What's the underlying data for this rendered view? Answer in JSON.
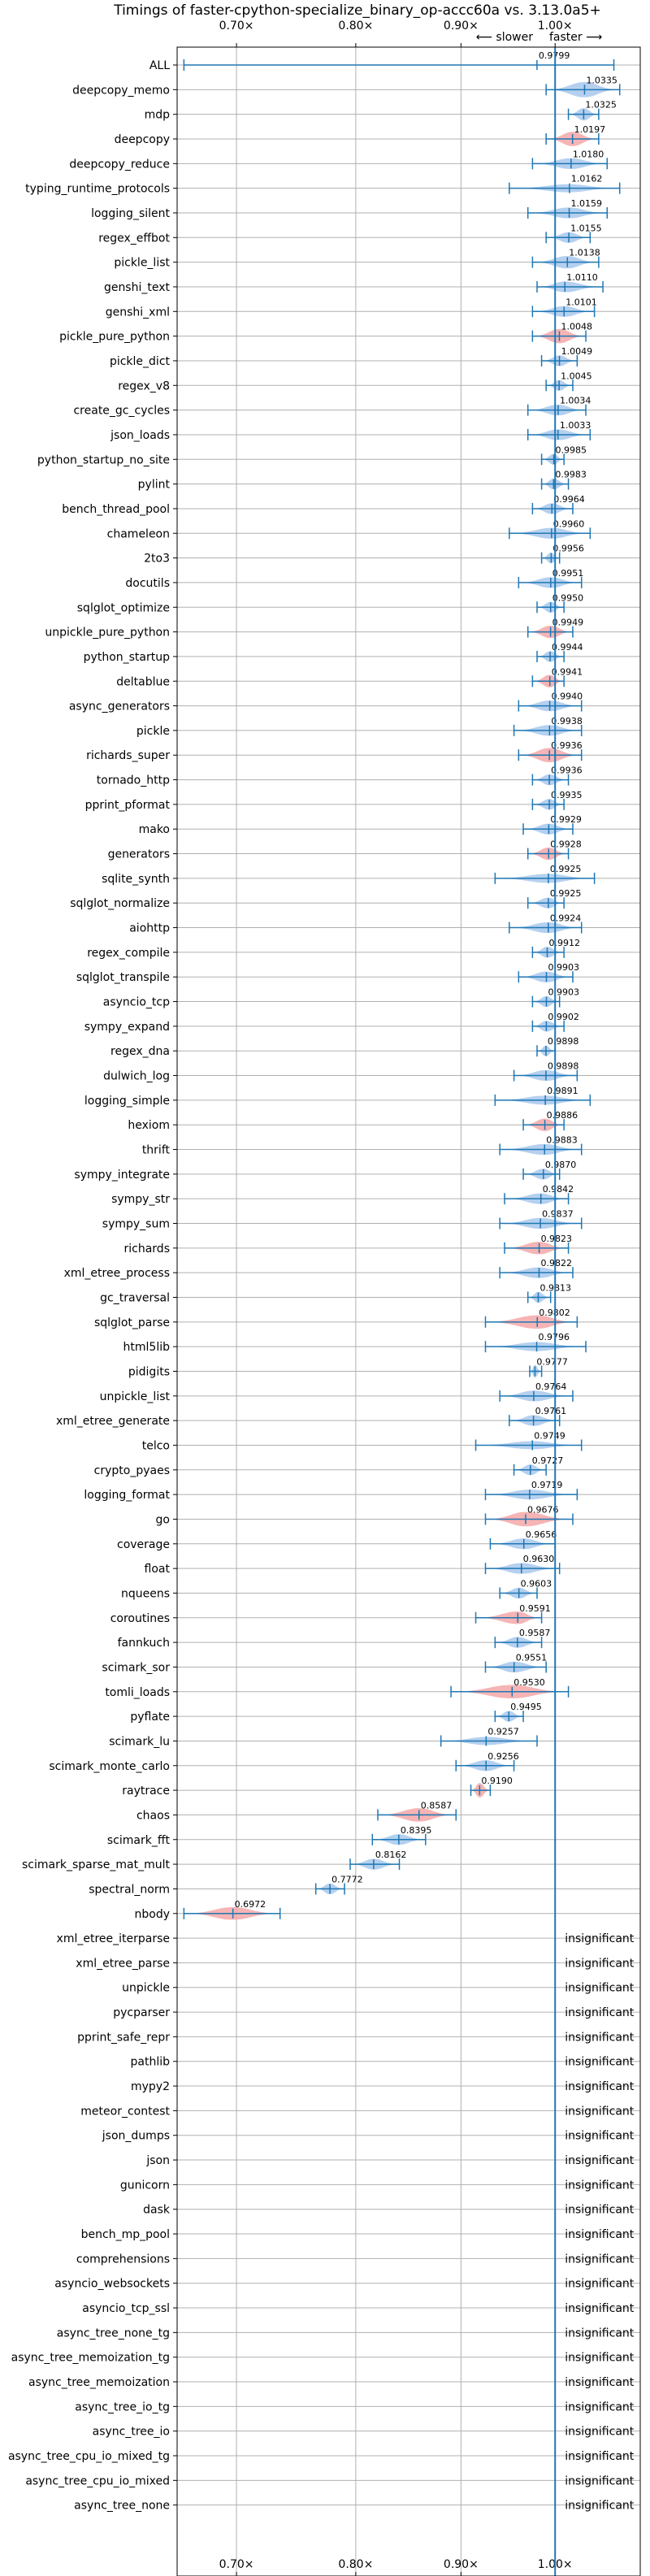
{
  "chart_data": {
    "type": "violin",
    "title": "Timings of faster-cpython-specialize_binary_op-accc60a vs. 3.13.0a5+",
    "xlabel": "",
    "ylabel": "",
    "x_scale": "log",
    "xlim": [
      0.655,
      1.1
    ],
    "x_ticks": [
      {
        "value": 0.7,
        "label": "0.70×"
      },
      {
        "value": 0.8,
        "label": "0.80×"
      },
      {
        "value": 0.9,
        "label": "0.90×"
      },
      {
        "value": 1.0,
        "label": "1.00×"
      }
    ],
    "reference_line": 1.0,
    "direction_labels": {
      "slower": "⟵ slower",
      "faster": "faster ⟶"
    },
    "grid": true,
    "colors": {
      "faster": "#a8c8ec",
      "slower": "#f4a7a7",
      "line": "#1f77b4"
    },
    "benchmarks": [
      {
        "name": "ALL",
        "value": 0.9799,
        "label": "0.9799",
        "lo": 0.66,
        "hi": 1.068,
        "color": "faster",
        "width": 0.01
      },
      {
        "name": "deepcopy_memo",
        "value": 1.0335,
        "label": "1.0335",
        "lo": 0.99,
        "hi": 1.075,
        "color": "faster",
        "width": 0.85
      },
      {
        "name": "mdp",
        "value": 1.0325,
        "label": "1.0325",
        "lo": 1.015,
        "hi": 1.05,
        "color": "faster",
        "width": 0.7
      },
      {
        "name": "deepcopy",
        "value": 1.0197,
        "label": "1.0197",
        "lo": 0.99,
        "hi": 1.05,
        "color": "slower",
        "width": 0.8
      },
      {
        "name": "deepcopy_reduce",
        "value": 1.018,
        "label": "1.0180",
        "lo": 0.975,
        "hi": 1.06,
        "color": "faster",
        "width": 0.6
      },
      {
        "name": "typing_runtime_protocols",
        "value": 1.0162,
        "label": "1.0162",
        "lo": 0.95,
        "hi": 1.075,
        "color": "faster",
        "width": 0.45
      },
      {
        "name": "logging_silent",
        "value": 1.0159,
        "label": "1.0159",
        "lo": 0.97,
        "hi": 1.06,
        "color": "faster",
        "width": 0.6
      },
      {
        "name": "regex_effbot",
        "value": 1.0155,
        "label": "1.0155",
        "lo": 0.99,
        "hi": 1.04,
        "color": "faster",
        "width": 0.6
      },
      {
        "name": "pickle_list",
        "value": 1.0138,
        "label": "1.0138",
        "lo": 0.975,
        "hi": 1.05,
        "color": "faster",
        "width": 0.7
      },
      {
        "name": "genshi_text",
        "value": 1.011,
        "label": "1.0110",
        "lo": 0.98,
        "hi": 1.055,
        "color": "faster",
        "width": 0.6
      },
      {
        "name": "genshi_xml",
        "value": 1.0101,
        "label": "1.0101",
        "lo": 0.975,
        "hi": 1.045,
        "color": "faster",
        "width": 0.6
      },
      {
        "name": "pickle_pure_python",
        "value": 1.0048,
        "label": "1.0048",
        "lo": 0.975,
        "hi": 1.035,
        "color": "slower",
        "width": 0.8
      },
      {
        "name": "pickle_dict",
        "value": 1.0049,
        "label": "1.0049",
        "lo": 0.985,
        "hi": 1.025,
        "color": "faster",
        "width": 0.6
      },
      {
        "name": "regex_v8",
        "value": 1.0045,
        "label": "1.0045",
        "lo": 0.99,
        "hi": 1.02,
        "color": "faster",
        "width": 0.6
      },
      {
        "name": "create_gc_cycles",
        "value": 1.0034,
        "label": "1.0034",
        "lo": 0.97,
        "hi": 1.035,
        "color": "faster",
        "width": 0.6
      },
      {
        "name": "json_loads",
        "value": 1.0033,
        "label": "1.0033",
        "lo": 0.97,
        "hi": 1.04,
        "color": "faster",
        "width": 0.6
      },
      {
        "name": "python_startup_no_site",
        "value": 0.9985,
        "label": "0.9985",
        "lo": 0.985,
        "hi": 1.01,
        "color": "faster",
        "width": 0.6
      },
      {
        "name": "pylint",
        "value": 0.9983,
        "label": "0.9983",
        "lo": 0.985,
        "hi": 1.015,
        "color": "faster",
        "width": 0.6
      },
      {
        "name": "bench_thread_pool",
        "value": 0.9964,
        "label": "0.9964",
        "lo": 0.975,
        "hi": 1.02,
        "color": "faster",
        "width": 0.6
      },
      {
        "name": "chameleon",
        "value": 0.996,
        "label": "0.9960",
        "lo": 0.95,
        "hi": 1.04,
        "color": "faster",
        "width": 0.6
      },
      {
        "name": "2to3",
        "value": 0.9956,
        "label": "0.9956",
        "lo": 0.985,
        "hi": 1.005,
        "color": "faster",
        "width": 0.6
      },
      {
        "name": "docutils",
        "value": 0.9951,
        "label": "0.9951",
        "lo": 0.96,
        "hi": 1.03,
        "color": "faster",
        "width": 0.6
      },
      {
        "name": "sqlglot_optimize",
        "value": 0.995,
        "label": "0.9950",
        "lo": 0.98,
        "hi": 1.01,
        "color": "faster",
        "width": 0.6
      },
      {
        "name": "unpickle_pure_python",
        "value": 0.9949,
        "label": "0.9949",
        "lo": 0.97,
        "hi": 1.02,
        "color": "slower",
        "width": 0.7
      },
      {
        "name": "python_startup",
        "value": 0.9944,
        "label": "0.9944",
        "lo": 0.98,
        "hi": 1.01,
        "color": "faster",
        "width": 0.6
      },
      {
        "name": "deltablue",
        "value": 0.9941,
        "label": "0.9941",
        "lo": 0.975,
        "hi": 1.01,
        "color": "slower",
        "width": 0.7
      },
      {
        "name": "async_generators",
        "value": 0.994,
        "label": "0.9940",
        "lo": 0.96,
        "hi": 1.03,
        "color": "faster",
        "width": 0.6
      },
      {
        "name": "pickle",
        "value": 0.9938,
        "label": "0.9938",
        "lo": 0.955,
        "hi": 1.03,
        "color": "faster",
        "width": 0.6
      },
      {
        "name": "richards_super",
        "value": 0.9936,
        "label": "0.9936",
        "lo": 0.96,
        "hi": 1.03,
        "color": "slower",
        "width": 0.8
      },
      {
        "name": "tornado_http",
        "value": 0.9936,
        "label": "0.9936",
        "lo": 0.975,
        "hi": 1.015,
        "color": "faster",
        "width": 0.6
      },
      {
        "name": "pprint_pformat",
        "value": 0.9935,
        "label": "0.9935",
        "lo": 0.975,
        "hi": 1.01,
        "color": "faster",
        "width": 0.6
      },
      {
        "name": "mako",
        "value": 0.9929,
        "label": "0.9929",
        "lo": 0.965,
        "hi": 1.02,
        "color": "faster",
        "width": 0.6
      },
      {
        "name": "generators",
        "value": 0.9928,
        "label": "0.9928",
        "lo": 0.97,
        "hi": 1.015,
        "color": "slower",
        "width": 0.7
      },
      {
        "name": "sqlite_synth",
        "value": 0.9925,
        "label": "0.9925",
        "lo": 0.935,
        "hi": 1.045,
        "color": "faster",
        "width": 0.5
      },
      {
        "name": "sqlglot_normalize",
        "value": 0.9925,
        "label": "0.9925",
        "lo": 0.97,
        "hi": 1.01,
        "color": "faster",
        "width": 0.6
      },
      {
        "name": "aiohttp",
        "value": 0.9924,
        "label": "0.9924",
        "lo": 0.95,
        "hi": 1.03,
        "color": "faster",
        "width": 0.6
      },
      {
        "name": "regex_compile",
        "value": 0.9912,
        "label": "0.9912",
        "lo": 0.975,
        "hi": 1.01,
        "color": "faster",
        "width": 0.6
      },
      {
        "name": "sqlglot_transpile",
        "value": 0.9903,
        "label": "0.9903",
        "lo": 0.96,
        "hi": 1.02,
        "color": "faster",
        "width": 0.6
      },
      {
        "name": "asyncio_tcp",
        "value": 0.9903,
        "label": "0.9903",
        "lo": 0.975,
        "hi": 1.005,
        "color": "faster",
        "width": 0.6
      },
      {
        "name": "sympy_expand",
        "value": 0.9902,
        "label": "0.9902",
        "lo": 0.975,
        "hi": 1.01,
        "color": "faster",
        "width": 0.6
      },
      {
        "name": "regex_dna",
        "value": 0.9898,
        "label": "0.9898",
        "lo": 0.98,
        "hi": 1.0,
        "color": "faster",
        "width": 0.6
      },
      {
        "name": "dulwich_log",
        "value": 0.9898,
        "label": "0.9898",
        "lo": 0.955,
        "hi": 1.025,
        "color": "faster",
        "width": 0.6
      },
      {
        "name": "logging_simple",
        "value": 0.9891,
        "label": "0.9891",
        "lo": 0.935,
        "hi": 1.04,
        "color": "faster",
        "width": 0.5
      },
      {
        "name": "hexiom",
        "value": 0.9886,
        "label": "0.9886",
        "lo": 0.965,
        "hi": 1.01,
        "color": "slower",
        "width": 0.7
      },
      {
        "name": "thrift",
        "value": 0.9883,
        "label": "0.9883",
        "lo": 0.94,
        "hi": 1.03,
        "color": "faster",
        "width": 0.6
      },
      {
        "name": "sympy_integrate",
        "value": 0.987,
        "label": "0.9870",
        "lo": 0.965,
        "hi": 1.005,
        "color": "faster",
        "width": 0.6
      },
      {
        "name": "sympy_str",
        "value": 0.9842,
        "label": "0.9842",
        "lo": 0.945,
        "hi": 1.015,
        "color": "faster",
        "width": 0.6
      },
      {
        "name": "sympy_sum",
        "value": 0.9837,
        "label": "0.9837",
        "lo": 0.94,
        "hi": 1.03,
        "color": "faster",
        "width": 0.6
      },
      {
        "name": "richards",
        "value": 0.9823,
        "label": "0.9823",
        "lo": 0.945,
        "hi": 1.015,
        "color": "slower",
        "width": 0.7
      },
      {
        "name": "xml_etree_process",
        "value": 0.9822,
        "label": "0.9822",
        "lo": 0.94,
        "hi": 1.02,
        "color": "faster",
        "width": 0.6
      },
      {
        "name": "gc_traversal",
        "value": 0.9813,
        "label": "0.9813",
        "lo": 0.97,
        "hi": 0.995,
        "color": "faster",
        "width": 0.6
      },
      {
        "name": "sqlglot_parse",
        "value": 0.9802,
        "label": "0.9802",
        "lo": 0.925,
        "hi": 1.025,
        "color": "slower",
        "width": 0.75
      },
      {
        "name": "html5lib",
        "value": 0.9796,
        "label": "0.9796",
        "lo": 0.925,
        "hi": 1.035,
        "color": "faster",
        "width": 0.5
      },
      {
        "name": "pidigits",
        "value": 0.9777,
        "label": "0.9777",
        "lo": 0.972,
        "hi": 0.985,
        "color": "faster",
        "width": 0.7
      },
      {
        "name": "unpickle_list",
        "value": 0.9764,
        "label": "0.9764",
        "lo": 0.94,
        "hi": 1.02,
        "color": "faster",
        "width": 0.6
      },
      {
        "name": "xml_etree_generate",
        "value": 0.9761,
        "label": "0.9761",
        "lo": 0.95,
        "hi": 1.005,
        "color": "faster",
        "width": 0.6
      },
      {
        "name": "telco",
        "value": 0.9749,
        "label": "0.9749",
        "lo": 0.915,
        "hi": 1.03,
        "color": "faster",
        "width": 0.45
      },
      {
        "name": "crypto_pyaes",
        "value": 0.9727,
        "label": "0.9727",
        "lo": 0.955,
        "hi": 0.99,
        "color": "faster",
        "width": 0.6
      },
      {
        "name": "logging_format",
        "value": 0.9719,
        "label": "0.9719",
        "lo": 0.925,
        "hi": 1.025,
        "color": "faster",
        "width": 0.55
      },
      {
        "name": "go",
        "value": 0.9676,
        "label": "0.9676",
        "lo": 0.925,
        "hi": 1.02,
        "color": "slower",
        "width": 0.8
      },
      {
        "name": "coverage",
        "value": 0.9656,
        "label": "0.9656",
        "lo": 0.93,
        "hi": 1.0,
        "color": "faster",
        "width": 0.6
      },
      {
        "name": "float",
        "value": 0.963,
        "label": "0.9630",
        "lo": 0.925,
        "hi": 1.005,
        "color": "faster",
        "width": 0.6
      },
      {
        "name": "nqueens",
        "value": 0.9603,
        "label": "0.9603",
        "lo": 0.94,
        "hi": 0.98,
        "color": "faster",
        "width": 0.6
      },
      {
        "name": "coroutines",
        "value": 0.9591,
        "label": "0.9591",
        "lo": 0.915,
        "hi": 0.985,
        "color": "slower",
        "width": 0.7
      },
      {
        "name": "fannkuch",
        "value": 0.9587,
        "label": "0.9587",
        "lo": 0.935,
        "hi": 0.985,
        "color": "faster",
        "width": 0.6
      },
      {
        "name": "scimark_sor",
        "value": 0.9551,
        "label": "0.9551",
        "lo": 0.925,
        "hi": 0.99,
        "color": "faster",
        "width": 0.6
      },
      {
        "name": "tomli_loads",
        "value": 0.953,
        "label": "0.9530",
        "lo": 0.89,
        "hi": 1.015,
        "color": "slower",
        "width": 0.75
      },
      {
        "name": "pyflate",
        "value": 0.9495,
        "label": "0.9495",
        "lo": 0.935,
        "hi": 0.965,
        "color": "faster",
        "width": 0.6
      },
      {
        "name": "scimark_lu",
        "value": 0.9257,
        "label": "0.9257",
        "lo": 0.88,
        "hi": 0.98,
        "color": "faster",
        "width": 0.45
      },
      {
        "name": "scimark_monte_carlo",
        "value": 0.9256,
        "label": "0.9256",
        "lo": 0.895,
        "hi": 0.955,
        "color": "faster",
        "width": 0.6
      },
      {
        "name": "raytrace",
        "value": 0.919,
        "label": "0.9190",
        "lo": 0.91,
        "hi": 0.93,
        "color": "slower",
        "width": 0.8
      },
      {
        "name": "chaos",
        "value": 0.8587,
        "label": "0.8587",
        "lo": 0.82,
        "hi": 0.895,
        "color": "slower",
        "width": 0.75
      },
      {
        "name": "scimark_fft",
        "value": 0.8395,
        "label": "0.8395",
        "lo": 0.815,
        "hi": 0.865,
        "color": "faster",
        "width": 0.6
      },
      {
        "name": "scimark_sparse_mat_mult",
        "value": 0.8162,
        "label": "0.8162",
        "lo": 0.795,
        "hi": 0.84,
        "color": "faster",
        "width": 0.6
      },
      {
        "name": "spectral_norm",
        "value": 0.7772,
        "label": "0.7772",
        "lo": 0.765,
        "hi": 0.79,
        "color": "faster",
        "width": 0.6
      },
      {
        "name": "nbody",
        "value": 0.6972,
        "label": "0.6972",
        "lo": 0.66,
        "hi": 0.735,
        "color": "slower",
        "width": 0.7
      },
      {
        "name": "xml_etree_iterparse",
        "value": null,
        "label": "insignificant"
      },
      {
        "name": "xml_etree_parse",
        "value": null,
        "label": "insignificant"
      },
      {
        "name": "unpickle",
        "value": null,
        "label": "insignificant"
      },
      {
        "name": "pycparser",
        "value": null,
        "label": "insignificant"
      },
      {
        "name": "pprint_safe_repr",
        "value": null,
        "label": "insignificant"
      },
      {
        "name": "pathlib",
        "value": null,
        "label": "insignificant"
      },
      {
        "name": "mypy2",
        "value": null,
        "label": "insignificant"
      },
      {
        "name": "meteor_contest",
        "value": null,
        "label": "insignificant"
      },
      {
        "name": "json_dumps",
        "value": null,
        "label": "insignificant"
      },
      {
        "name": "json",
        "value": null,
        "label": "insignificant"
      },
      {
        "name": "gunicorn",
        "value": null,
        "label": "insignificant"
      },
      {
        "name": "dask",
        "value": null,
        "label": "insignificant"
      },
      {
        "name": "bench_mp_pool",
        "value": null,
        "label": "insignificant"
      },
      {
        "name": "comprehensions",
        "value": null,
        "label": "insignificant"
      },
      {
        "name": "asyncio_websockets",
        "value": null,
        "label": "insignificant"
      },
      {
        "name": "asyncio_tcp_ssl",
        "value": null,
        "label": "insignificant"
      },
      {
        "name": "async_tree_none_tg",
        "value": null,
        "label": "insignificant"
      },
      {
        "name": "async_tree_memoization_tg",
        "value": null,
        "label": "insignificant"
      },
      {
        "name": "async_tree_memoization",
        "value": null,
        "label": "insignificant"
      },
      {
        "name": "async_tree_io_tg",
        "value": null,
        "label": "insignificant"
      },
      {
        "name": "async_tree_io",
        "value": null,
        "label": "insignificant"
      },
      {
        "name": "async_tree_cpu_io_mixed_tg",
        "value": null,
        "label": "insignificant"
      },
      {
        "name": "async_tree_cpu_io_mixed",
        "value": null,
        "label": "insignificant"
      },
      {
        "name": "async_tree_none",
        "value": null,
        "label": "insignificant"
      }
    ]
  }
}
